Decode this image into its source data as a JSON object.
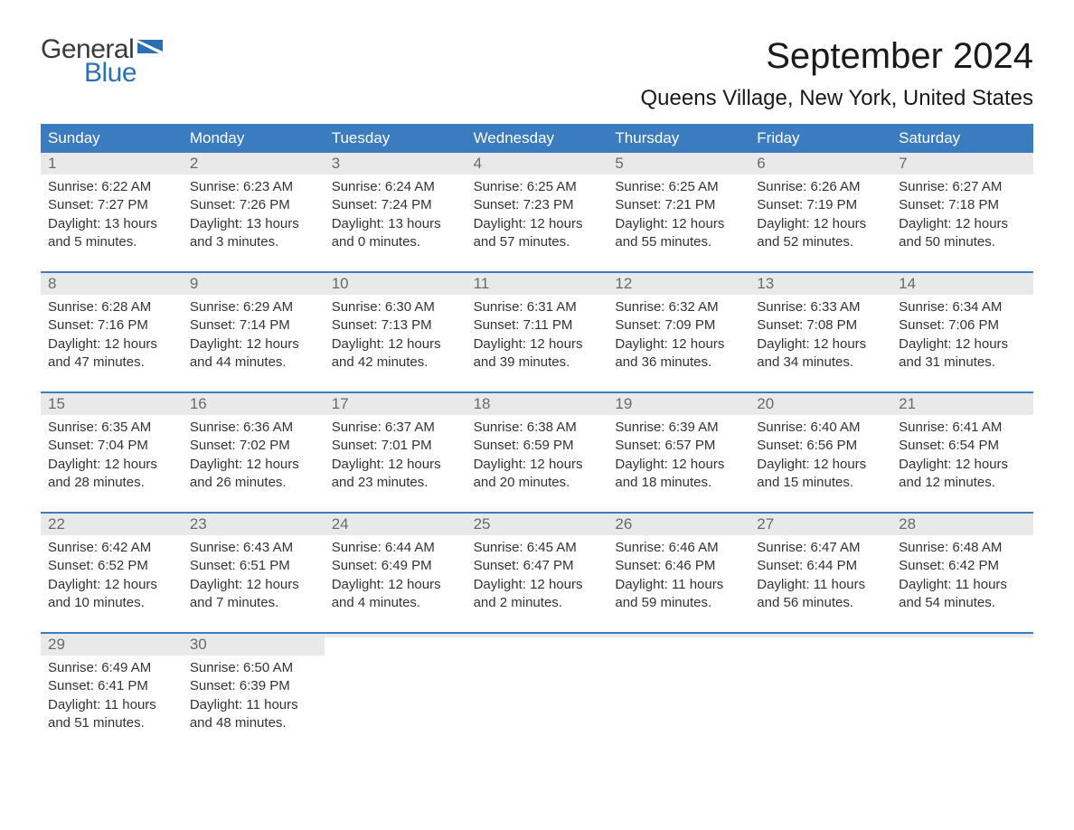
{
  "logo": {
    "text1": "General",
    "text2": "Blue",
    "color1": "#3a3a3a",
    "color2": "#2b6fb5"
  },
  "title": "September 2024",
  "location": "Queens Village, New York, United States",
  "colors": {
    "header_bg": "#3b7bbf",
    "header_text": "#ffffff",
    "daynum_bg": "#e9e9e9",
    "daynum_text": "#6a6a6a",
    "body_text": "#333333",
    "week_border": "#3b7bbf",
    "page_bg": "#ffffff"
  },
  "typography": {
    "title_fontsize": 40,
    "location_fontsize": 24,
    "dayheader_fontsize": 17,
    "daynum_fontsize": 17,
    "body_fontsize": 15
  },
  "day_headers": [
    "Sunday",
    "Monday",
    "Tuesday",
    "Wednesday",
    "Thursday",
    "Friday",
    "Saturday"
  ],
  "weeks": [
    [
      {
        "n": "1",
        "sunrise": "6:22 AM",
        "sunset": "7:27 PM",
        "dl1": "13 hours",
        "dl2": "5 minutes"
      },
      {
        "n": "2",
        "sunrise": "6:23 AM",
        "sunset": "7:26 PM",
        "dl1": "13 hours",
        "dl2": "3 minutes"
      },
      {
        "n": "3",
        "sunrise": "6:24 AM",
        "sunset": "7:24 PM",
        "dl1": "13 hours",
        "dl2": "0 minutes"
      },
      {
        "n": "4",
        "sunrise": "6:25 AM",
        "sunset": "7:23 PM",
        "dl1": "12 hours",
        "dl2": "57 minutes"
      },
      {
        "n": "5",
        "sunrise": "6:25 AM",
        "sunset": "7:21 PM",
        "dl1": "12 hours",
        "dl2": "55 minutes"
      },
      {
        "n": "6",
        "sunrise": "6:26 AM",
        "sunset": "7:19 PM",
        "dl1": "12 hours",
        "dl2": "52 minutes"
      },
      {
        "n": "7",
        "sunrise": "6:27 AM",
        "sunset": "7:18 PM",
        "dl1": "12 hours",
        "dl2": "50 minutes"
      }
    ],
    [
      {
        "n": "8",
        "sunrise": "6:28 AM",
        "sunset": "7:16 PM",
        "dl1": "12 hours",
        "dl2": "47 minutes"
      },
      {
        "n": "9",
        "sunrise": "6:29 AM",
        "sunset": "7:14 PM",
        "dl1": "12 hours",
        "dl2": "44 minutes"
      },
      {
        "n": "10",
        "sunrise": "6:30 AM",
        "sunset": "7:13 PM",
        "dl1": "12 hours",
        "dl2": "42 minutes"
      },
      {
        "n": "11",
        "sunrise": "6:31 AM",
        "sunset": "7:11 PM",
        "dl1": "12 hours",
        "dl2": "39 minutes"
      },
      {
        "n": "12",
        "sunrise": "6:32 AM",
        "sunset": "7:09 PM",
        "dl1": "12 hours",
        "dl2": "36 minutes"
      },
      {
        "n": "13",
        "sunrise": "6:33 AM",
        "sunset": "7:08 PM",
        "dl1": "12 hours",
        "dl2": "34 minutes"
      },
      {
        "n": "14",
        "sunrise": "6:34 AM",
        "sunset": "7:06 PM",
        "dl1": "12 hours",
        "dl2": "31 minutes"
      }
    ],
    [
      {
        "n": "15",
        "sunrise": "6:35 AM",
        "sunset": "7:04 PM",
        "dl1": "12 hours",
        "dl2": "28 minutes"
      },
      {
        "n": "16",
        "sunrise": "6:36 AM",
        "sunset": "7:02 PM",
        "dl1": "12 hours",
        "dl2": "26 minutes"
      },
      {
        "n": "17",
        "sunrise": "6:37 AM",
        "sunset": "7:01 PM",
        "dl1": "12 hours",
        "dl2": "23 minutes"
      },
      {
        "n": "18",
        "sunrise": "6:38 AM",
        "sunset": "6:59 PM",
        "dl1": "12 hours",
        "dl2": "20 minutes"
      },
      {
        "n": "19",
        "sunrise": "6:39 AM",
        "sunset": "6:57 PM",
        "dl1": "12 hours",
        "dl2": "18 minutes"
      },
      {
        "n": "20",
        "sunrise": "6:40 AM",
        "sunset": "6:56 PM",
        "dl1": "12 hours",
        "dl2": "15 minutes"
      },
      {
        "n": "21",
        "sunrise": "6:41 AM",
        "sunset": "6:54 PM",
        "dl1": "12 hours",
        "dl2": "12 minutes"
      }
    ],
    [
      {
        "n": "22",
        "sunrise": "6:42 AM",
        "sunset": "6:52 PM",
        "dl1": "12 hours",
        "dl2": "10 minutes"
      },
      {
        "n": "23",
        "sunrise": "6:43 AM",
        "sunset": "6:51 PM",
        "dl1": "12 hours",
        "dl2": "7 minutes"
      },
      {
        "n": "24",
        "sunrise": "6:44 AM",
        "sunset": "6:49 PM",
        "dl1": "12 hours",
        "dl2": "4 minutes"
      },
      {
        "n": "25",
        "sunrise": "6:45 AM",
        "sunset": "6:47 PM",
        "dl1": "12 hours",
        "dl2": "2 minutes"
      },
      {
        "n": "26",
        "sunrise": "6:46 AM",
        "sunset": "6:46 PM",
        "dl1": "11 hours",
        "dl2": "59 minutes"
      },
      {
        "n": "27",
        "sunrise": "6:47 AM",
        "sunset": "6:44 PM",
        "dl1": "11 hours",
        "dl2": "56 minutes"
      },
      {
        "n": "28",
        "sunrise": "6:48 AM",
        "sunset": "6:42 PM",
        "dl1": "11 hours",
        "dl2": "54 minutes"
      }
    ],
    [
      {
        "n": "29",
        "sunrise": "6:49 AM",
        "sunset": "6:41 PM",
        "dl1": "11 hours",
        "dl2": "51 minutes"
      },
      {
        "n": "30",
        "sunrise": "6:50 AM",
        "sunset": "6:39 PM",
        "dl1": "11 hours",
        "dl2": "48 minutes"
      },
      {
        "empty": true
      },
      {
        "empty": true
      },
      {
        "empty": true
      },
      {
        "empty": true
      },
      {
        "empty": true
      }
    ]
  ],
  "labels": {
    "sunrise_prefix": "Sunrise: ",
    "sunset_prefix": "Sunset: ",
    "daylight_prefix": "Daylight: ",
    "and_word": "and ",
    "period": "."
  }
}
